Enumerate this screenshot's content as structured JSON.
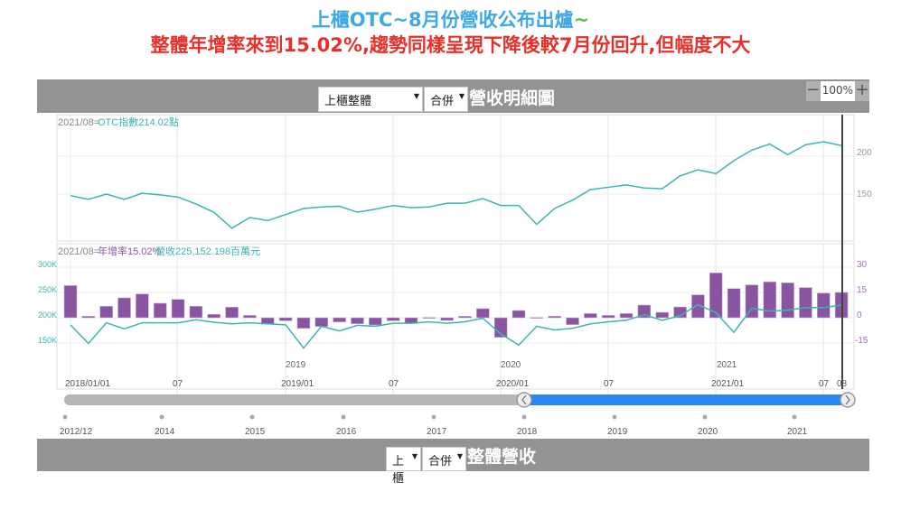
{
  "headline": {
    "line1": "上櫃OTC~8月份營收公布出爐",
    "line1_tilde": "~",
    "line2": "整體年增率來到15.02%,趨勢同樣呈現下降後較7月份回升,但幅度不大"
  },
  "header": {
    "market_select": "上櫃整體",
    "type_select": "合併",
    "title": "營收明細圖",
    "zoom_minus": "−",
    "zoom_value": "100%",
    "zoom_plus": "+"
  },
  "footer": {
    "market_select": "上櫃",
    "type_select": "合併",
    "title": "整體營收"
  },
  "colors": {
    "otc": "#3ab5b0",
    "yoy": "#8a55a0",
    "slider": "#2a86f0",
    "title_blue": "#3fa9e6",
    "title_red": "#e8302a"
  },
  "chart_data": [
    {
      "type": "line",
      "title": "OTC指數",
      "readout_date": "2021/08=",
      "readout_value": "OTC指數214.02點",
      "x_start": "2018/01",
      "x_end": "2021/08",
      "yticks": [
        "200",
        "150"
      ],
      "values": [
        148,
        143,
        150,
        143,
        151,
        149,
        146,
        137,
        126,
        105,
        119,
        115,
        123,
        131,
        133,
        134,
        126,
        130,
        135,
        132,
        133,
        138,
        138,
        144,
        135,
        135,
        110,
        131,
        142,
        156,
        159,
        162,
        158,
        157,
        174,
        182,
        177,
        194,
        208,
        216,
        202,
        215,
        219,
        214.02
      ]
    },
    {
      "type": "bar+line",
      "readout_date": "2021/08=",
      "readout_yoy": "年增率15.02%",
      "readout_revenue": "營收225,152.198百萬元",
      "left_ticks": [
        "300K",
        "250K",
        "200K",
        "150K"
      ],
      "right_ticks": [
        "30",
        "15",
        "0",
        "-15"
      ],
      "yoy_pct": [
        19.1,
        0.9,
        6.8,
        11.8,
        14.1,
        8.6,
        10.9,
        6.8,
        2,
        6.3,
        1.4,
        -3.9,
        -1.8,
        -6.3,
        -5.2,
        -2.5,
        -3.6,
        -4.3,
        -1.8,
        -3.4,
        0.2,
        -1.6,
        0.9,
        5.4,
        -11.6,
        4.3,
        0.2,
        0.9,
        -4.1,
        2.5,
        1.4,
        2.5,
        7.5,
        3.2,
        6.4,
        13.6,
        26.6,
        17.3,
        19.5,
        21.3,
        20.7,
        17.9,
        14.6,
        15.02
      ],
      "revenue_k": [
        186,
        149,
        190,
        178,
        190,
        190,
        190,
        196,
        191,
        188,
        190,
        188,
        186,
        140,
        183,
        174,
        185,
        183,
        189,
        189,
        192,
        189,
        192,
        199,
        168,
        146,
        183,
        176,
        179,
        188,
        192,
        195,
        206,
        195,
        204,
        226,
        210,
        171,
        219,
        213,
        215,
        220,
        220,
        225.15
      ],
      "year_labels": [
        "2019",
        "2020",
        "2021"
      ],
      "x_tick_labels": [
        "2018/01/01",
        "07",
        "2019/01",
        "07",
        "2020/01",
        "07",
        "2021/01",
        "07",
        "08"
      ]
    }
  ],
  "range_slider": {
    "start_fraction": 0.57,
    "end_fraction": 1.0,
    "timeline_labels": [
      "2012/12",
      "2014",
      "2015",
      "2016",
      "2017",
      "2018",
      "2019",
      "2020",
      "2021"
    ]
  }
}
